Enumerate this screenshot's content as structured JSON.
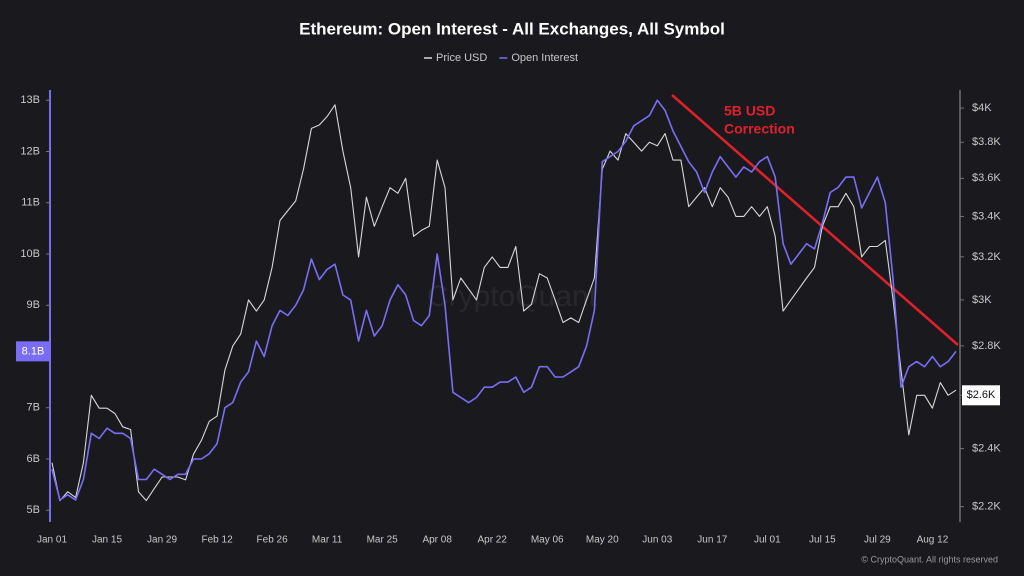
{
  "chart_data": {
    "type": "line",
    "title": "Ethereum: Open Interest - All Exchanges, All Symbol",
    "x": [
      "Jan 01",
      null,
      null,
      null,
      null,
      null,
      null,
      "Jan 15",
      null,
      null,
      null,
      null,
      null,
      null,
      "Jan 29",
      null,
      null,
      null,
      null,
      null,
      null,
      "Feb 12",
      null,
      null,
      null,
      null,
      null,
      null,
      "Feb 26",
      null,
      null,
      null,
      null,
      null,
      null,
      "Mar 11",
      null,
      null,
      null,
      null,
      null,
      null,
      "Mar 25",
      null,
      null,
      null,
      null,
      null,
      null,
      "Apr 08",
      null,
      null,
      null,
      null,
      null,
      null,
      "Apr 22",
      null,
      null,
      null,
      null,
      null,
      null,
      "May 06",
      null,
      null,
      null,
      null,
      null,
      null,
      "May 20",
      null,
      null,
      null,
      null,
      null,
      null,
      "Jun 03",
      null,
      null,
      null,
      null,
      null,
      null,
      "Jun 17",
      null,
      null,
      null,
      null,
      null,
      null,
      "Jul 01",
      null,
      null,
      null,
      null,
      null,
      null,
      "Jul 15",
      null,
      null,
      null,
      null,
      null,
      null,
      "Jul 29",
      null,
      null,
      null,
      null,
      null,
      null,
      "Aug 12",
      null,
      null,
      null
    ],
    "series": [
      {
        "name": "Price USD",
        "color": "#d8d8d8",
        "axis": "y2",
        "current_label": {
          "value": 2600,
          "label": "$2.6K"
        },
        "values": [
          2350,
          2220,
          2250,
          2230,
          2350,
          2600,
          2550,
          2550,
          2530,
          2480,
          2470,
          2250,
          2220,
          2260,
          2300,
          2300,
          2300,
          2290,
          2380,
          2430,
          2500,
          2520,
          2700,
          2800,
          2850,
          3000,
          2950,
          3000,
          3150,
          3380,
          3430,
          3480,
          3650,
          3880,
          3900,
          3950,
          4020,
          3750,
          3550,
          3200,
          3500,
          3350,
          3450,
          3550,
          3520,
          3600,
          3300,
          3330,
          3350,
          3700,
          3550,
          3000,
          3100,
          3050,
          3000,
          3150,
          3200,
          3150,
          3150,
          3250,
          2950,
          2980,
          3120,
          3100,
          3000,
          2900,
          2920,
          2900,
          3000,
          3100,
          3650,
          3750,
          3700,
          3850,
          3800,
          3750,
          3800,
          3780,
          3850,
          3700,
          3700,
          3450,
          3500,
          3550,
          3450,
          3550,
          3500,
          3400,
          3400,
          3450,
          3400,
          3450,
          3300,
          2950,
          3000,
          3050,
          3100,
          3150,
          3350,
          3450,
          3450,
          3520,
          3450,
          3200,
          3250,
          3250,
          3280,
          3000,
          2700,
          2450,
          2600,
          2600,
          2550,
          2650,
          2600,
          2620
        ]
      },
      {
        "name": "Open Interest",
        "color": "#7a6df5",
        "current_label": {
          "value": 8.1,
          "label": "8.1B"
        },
        "values": [
          5.8,
          5.2,
          5.3,
          5.2,
          5.6,
          6.5,
          6.4,
          6.6,
          6.5,
          6.5,
          6.4,
          5.6,
          5.6,
          5.8,
          5.7,
          5.6,
          5.7,
          5.7,
          6.0,
          6.0,
          6.1,
          6.3,
          7.0,
          7.1,
          7.5,
          7.7,
          8.3,
          8.0,
          8.6,
          8.9,
          8.8,
          9.0,
          9.3,
          9.9,
          9.5,
          9.7,
          9.8,
          9.2,
          9.1,
          8.3,
          8.9,
          8.4,
          8.6,
          9.1,
          9.4,
          9.2,
          8.7,
          8.6,
          8.8,
          10.0,
          9.0,
          7.3,
          7.2,
          7.1,
          7.2,
          7.4,
          7.4,
          7.5,
          7.5,
          7.6,
          7.3,
          7.4,
          7.8,
          7.8,
          7.6,
          7.6,
          7.7,
          7.8,
          8.2,
          8.9,
          11.8,
          11.9,
          12.0,
          12.2,
          12.5,
          12.6,
          12.7,
          13.0,
          12.8,
          12.4,
          12.1,
          11.8,
          11.6,
          11.2,
          11.6,
          11.9,
          11.7,
          11.5,
          11.7,
          11.6,
          11.8,
          11.9,
          11.5,
          10.2,
          9.8,
          10.0,
          10.2,
          10.1,
          10.6,
          11.2,
          11.3,
          11.5,
          11.5,
          10.9,
          11.2,
          11.5,
          11.0,
          9.5,
          7.4,
          7.8,
          7.9,
          7.8,
          8.0,
          7.8,
          7.9,
          8.1
        ]
      }
    ],
    "ylim": [
      4.77,
      13.2
    ],
    "yticks": [
      {
        "value": 5,
        "label": "5B"
      },
      {
        "value": 6,
        "label": "6B"
      },
      {
        "value": 7,
        "label": "7B"
      },
      {
        "value": 9,
        "label": "9B"
      },
      {
        "value": 10,
        "label": "10B"
      },
      {
        "value": 11,
        "label": "11B"
      },
      {
        "value": 12,
        "label": "12B"
      },
      {
        "value": 13,
        "label": "13B"
      }
    ],
    "y2lim": [
      2150,
      4110
    ],
    "y2_log": true,
    "y2ticks": [
      {
        "value": 2200,
        "label": "$2.2K"
      },
      {
        "value": 2400,
        "label": "$2.4K"
      },
      {
        "value": 2600,
        "label": "$2.6K"
      },
      {
        "value": 2800,
        "label": "$2.8K"
      },
      {
        "value": 3000,
        "label": "$3K"
      },
      {
        "value": 3200,
        "label": "$3.2K"
      },
      {
        "value": 3400,
        "label": "$3.4K"
      },
      {
        "value": 3600,
        "label": "$3.6K"
      },
      {
        "value": 3800,
        "label": "$3.8K"
      },
      {
        "value": 4000,
        "label": "$4K"
      }
    ],
    "annotation": [
      "5B USD",
      "Correction"
    ],
    "watermark": "CryptoQuant",
    "credit": "© CryptoQuant. All rights reserved"
  }
}
